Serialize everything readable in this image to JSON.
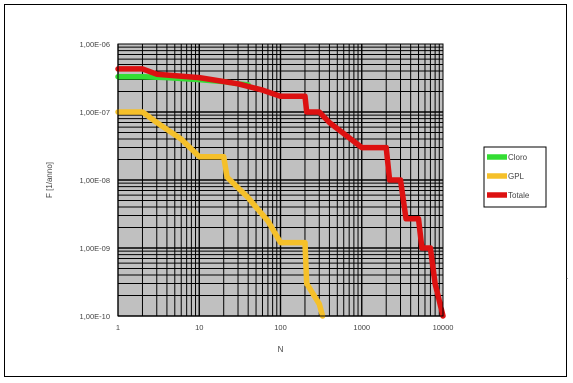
{
  "chart_data": {
    "type": "line",
    "xscale": "log",
    "yscale": "log",
    "xlim": [
      1,
      10000
    ],
    "ylim": [
      1e-10,
      1e-06
    ],
    "x_ticks": [
      1,
      10,
      100,
      1000,
      10000
    ],
    "x_tick_labels": [
      "1",
      "10",
      "100",
      "1000",
      "10000"
    ],
    "y_ticks": [
      1e-06,
      1e-07,
      1e-08,
      1e-09,
      1e-10
    ],
    "y_tick_labels": [
      "1,00E-06",
      "1,00E-07",
      "1,00E-08",
      "1,00E-09",
      "1,00E-10"
    ],
    "xlabel": "N",
    "ylabel": "F [1/anno]",
    "grid": true,
    "legend_position": "right",
    "plot_background": "#c0c0c0",
    "series": [
      {
        "name": "Cloro",
        "color": "#33dd33",
        "points": [
          [
            1,
            3.3e-07
          ],
          [
            2,
            3.3e-07
          ],
          [
            4,
            3.2e-07
          ],
          [
            10,
            3e-07
          ],
          [
            20,
            2.8e-07
          ],
          [
            30,
            2.6e-07
          ],
          [
            40,
            2.5e-07
          ]
        ]
      },
      {
        "name": "GPL",
        "color": "#f5c02a",
        "points": [
          [
            1,
            1e-07
          ],
          [
            2,
            1e-07
          ],
          [
            3,
            7e-08
          ],
          [
            6,
            4e-08
          ],
          [
            10,
            2.2e-08
          ],
          [
            20,
            2.2e-08
          ],
          [
            22,
            1.1e-08
          ],
          [
            40,
            5.5e-09
          ],
          [
            50,
            4e-09
          ],
          [
            70,
            2.5e-09
          ],
          [
            100,
            1.2e-09
          ],
          [
            200,
            1.2e-09
          ],
          [
            210,
            3e-10
          ],
          [
            300,
            1.5e-10
          ],
          [
            330,
            1e-10
          ]
        ]
      },
      {
        "name": "Totale",
        "color": "#dd1111",
        "points": [
          [
            1,
            4.3e-07
          ],
          [
            2,
            4.3e-07
          ],
          [
            3,
            3.6e-07
          ],
          [
            10,
            3.2e-07
          ],
          [
            30,
            2.6e-07
          ],
          [
            60,
            2.1e-07
          ],
          [
            100,
            1.7e-07
          ],
          [
            200,
            1.7e-07
          ],
          [
            210,
            1e-07
          ],
          [
            300,
            1e-07
          ],
          [
            400,
            7e-08
          ],
          [
            1000,
            3e-08
          ],
          [
            2000,
            3e-08
          ],
          [
            2200,
            1e-08
          ],
          [
            3000,
            1e-08
          ],
          [
            3500,
            2.7e-09
          ],
          [
            5000,
            2.7e-09
          ],
          [
            5500,
            1e-09
          ],
          [
            7000,
            1e-09
          ],
          [
            8000,
            3e-10
          ],
          [
            10000,
            1e-10
          ]
        ]
      }
    ]
  },
  "misc": {
    "stray_mark": "."
  }
}
